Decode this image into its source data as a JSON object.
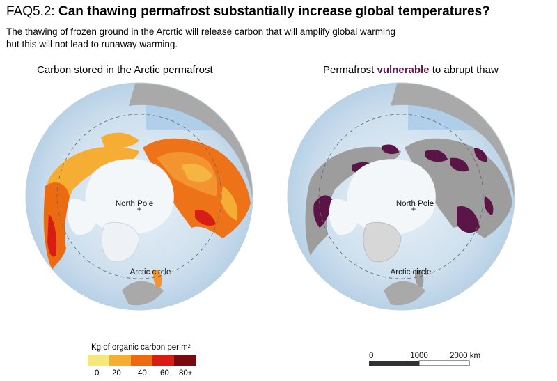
{
  "header": {
    "tag": "FAQ5.2:",
    "question": "Can thawing permafrost substantially increase global temperatures?",
    "subtitle": "The thawing of frozen ground in the Arcrtic will release carbon that will amplify global warming but this will not lead to runaway warming."
  },
  "left_map": {
    "title": "Carbon stored in the Arctic permafrost",
    "north_pole_label": "North Pole",
    "arctic_circle_label": "Arctic circle"
  },
  "right_map": {
    "title_before": "Permafrost ",
    "title_highlight": "vulnerable",
    "title_after": " to abrupt thaw",
    "highlight_color": "#5b1a4a",
    "north_pole_label": "North Pole",
    "arctic_circle_label": "Arctic circle"
  },
  "legend": {
    "title": "Kg of organic carbon per m²",
    "ticks": [
      "0",
      "20",
      "40",
      "60",
      "80+"
    ],
    "colors": [
      "#f6e77a",
      "#f6ad33",
      "#ec6a10",
      "#d81e14",
      "#7a0a12"
    ]
  },
  "scale_bar": {
    "labels": [
      "0",
      "1000",
      "2000 km"
    ]
  },
  "colors": {
    "ocean": "#c9dceb",
    "land": "#a9a9a9",
    "ice": "#f4f7fa",
    "vulnerable": "#5a1446"
  }
}
